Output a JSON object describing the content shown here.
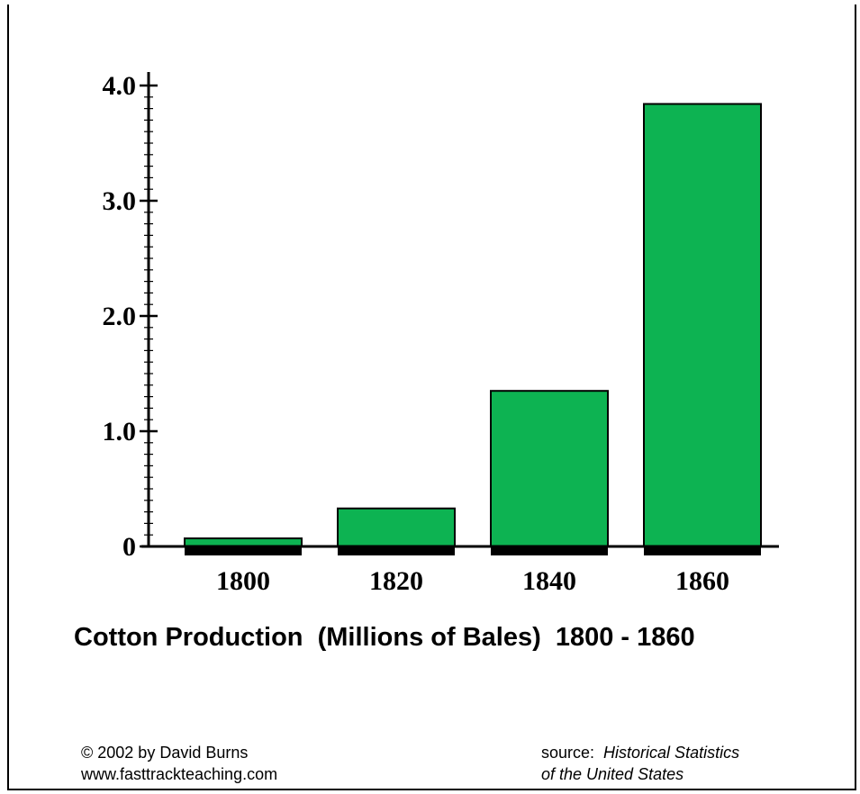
{
  "chart_data": {
    "type": "bar",
    "categories": [
      "1800",
      "1820",
      "1840",
      "1860"
    ],
    "values": [
      0.07,
      0.33,
      1.35,
      3.84
    ],
    "title": "Cotton Production  (Millions of Bales)  1800 - 1860",
    "xlabel": "",
    "ylabel": "",
    "ylim": [
      0,
      4.0
    ],
    "y_ticks": [
      "0",
      "1.0",
      "2.0",
      "3.0",
      "4.0"
    ],
    "y_tick_values": [
      0,
      1,
      2,
      3,
      4
    ],
    "grid": false,
    "bar_color": "#0db352",
    "bar_outline": "#000000"
  },
  "footer": {
    "copyright_line1": "© 2002 by David Burns",
    "copyright_line2": "www.fasttrackteaching.com",
    "source_label": "source:",
    "source_title_line1": "Historical Statistics",
    "source_title_line2": "of the United States"
  }
}
